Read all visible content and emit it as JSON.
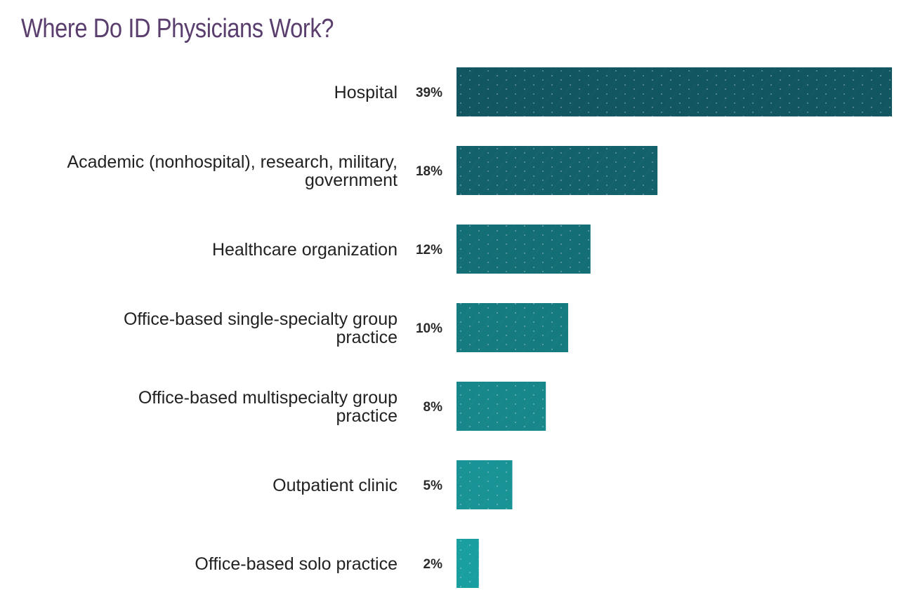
{
  "chart_data": {
    "type": "bar",
    "orientation": "horizontal",
    "title": "Where Do ID Physicians Work?",
    "categories": [
      [
        "Hospital"
      ],
      [
        "Academic (nonhospital), research, military,",
        "government"
      ],
      [
        "Healthcare organization"
      ],
      [
        "Office-based single-specialty group",
        "practice"
      ],
      [
        "Office-based multispecialty group",
        "practice"
      ],
      [
        "Outpatient clinic"
      ],
      [
        "Office-based solo practice"
      ]
    ],
    "values": [
      39,
      18,
      12,
      10,
      8,
      5,
      2
    ],
    "value_labels": [
      "39%",
      "18%",
      "12%",
      "10%",
      "8%",
      "5%",
      "2%"
    ],
    "unit": "%",
    "xlim": [
      0,
      39
    ],
    "grid": false,
    "legend": "none",
    "colors": {
      "title": "#5a3f6e",
      "bar_start": "#115660",
      "bar_end": "#1a9fa0",
      "text": "#222222"
    }
  }
}
